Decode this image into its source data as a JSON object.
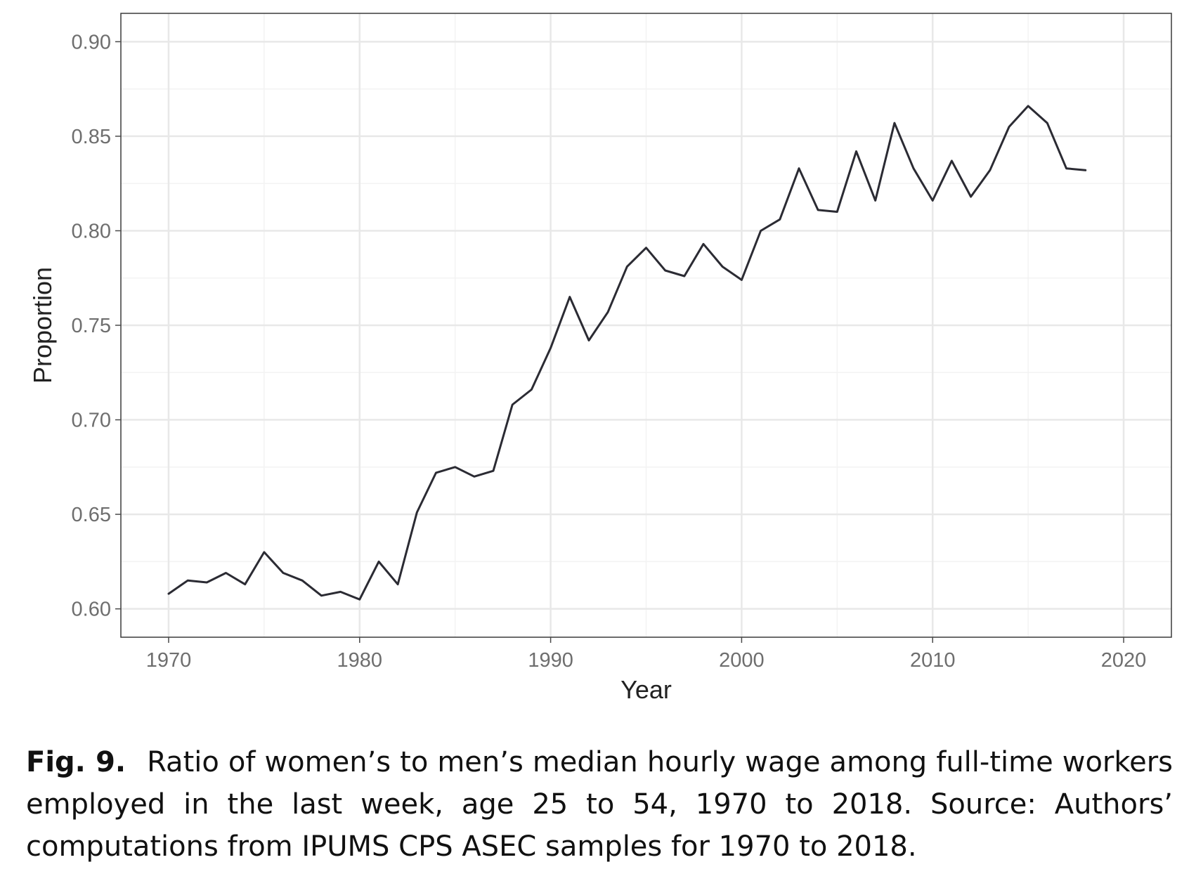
{
  "chart_data": {
    "type": "line",
    "xlabel": "Year",
    "ylabel": "Proportion",
    "xlim": [
      1967.5,
      2022.5
    ],
    "ylim": [
      0.585,
      0.915
    ],
    "x_ticks": [
      1970,
      1980,
      1990,
      2000,
      2010,
      2020
    ],
    "x_tick_labels": [
      "1970",
      "1980",
      "1990",
      "2000",
      "2010",
      "2020"
    ],
    "y_ticks": [
      0.6,
      0.65,
      0.7,
      0.75,
      0.8,
      0.85,
      0.9
    ],
    "y_tick_labels": [
      "0.60",
      "0.65",
      "0.70",
      "0.75",
      "0.80",
      "0.85",
      "0.90"
    ],
    "grid": true,
    "line_color": "#2b2b33",
    "series": [
      {
        "x": [
          1970,
          1971,
          1972,
          1973,
          1974,
          1975,
          1976,
          1977,
          1978,
          1979,
          1980,
          1981,
          1982,
          1983,
          1984,
          1985,
          1986,
          1987,
          1988,
          1989,
          1990,
          1991,
          1992,
          1993,
          1994,
          1995,
          1996,
          1997,
          1998,
          1999,
          2000,
          2001,
          2002,
          2003,
          2004,
          2005,
          2006,
          2007,
          2008,
          2009,
          2010,
          2011,
          2012,
          2013,
          2014,
          2015,
          2016,
          2017,
          2018
        ],
        "values": [
          0.608,
          0.615,
          0.614,
          0.619,
          0.613,
          0.63,
          0.619,
          0.615,
          0.607,
          0.609,
          0.605,
          0.625,
          0.613,
          0.651,
          0.672,
          0.675,
          0.67,
          0.673,
          0.708,
          0.716,
          0.738,
          0.765,
          0.742,
          0.757,
          0.781,
          0.791,
          0.779,
          0.776,
          0.793,
          0.781,
          0.774,
          0.8,
          0.806,
          0.833,
          0.811,
          0.81,
          0.842,
          0.816,
          0.857,
          0.833,
          0.816,
          0.837,
          0.818,
          0.832,
          0.855,
          0.866,
          0.857,
          0.833,
          0.832
        ]
      }
    ]
  },
  "caption": {
    "label": "Fig. 9.",
    "text": "Ratio of women’s to men’s median hourly wage among full-time workers employed in the last week, age 25 to 54, 1970 to 2018. Source: Authors’ computations from IPUMS CPS ASEC samples for 1970 to 2018."
  }
}
